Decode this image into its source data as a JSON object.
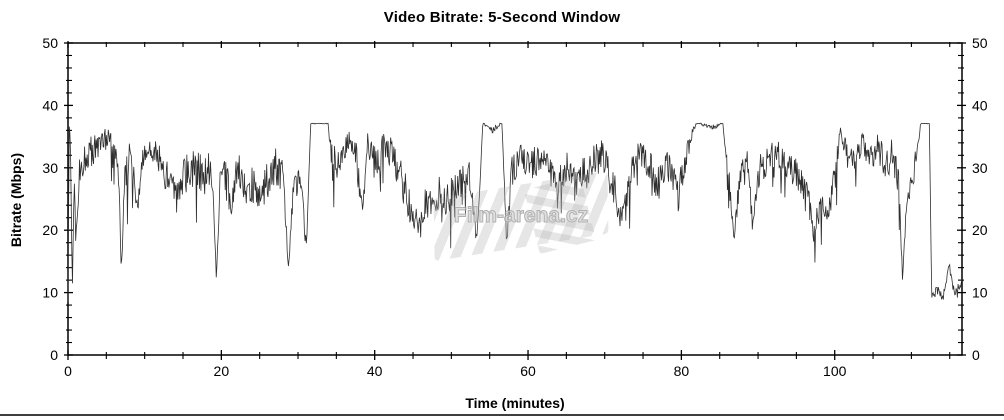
{
  "watermark": {
    "text": "Film-arena.cz"
  },
  "chart_data": {
    "type": "line",
    "title": "Video Bitrate: 5-Second Window",
    "xlabel": "Time (minutes)",
    "ylabel": "Bitrate (Mbps)",
    "xlim": [
      0,
      116.6
    ],
    "ylim": [
      0,
      50
    ],
    "x_ticks_major": [
      0,
      20,
      40,
      60,
      80,
      100
    ],
    "x_minor_step": 5,
    "y_ticks_major": [
      0,
      10,
      20,
      30,
      40,
      50
    ],
    "y_minor_step": 2,
    "grid": false,
    "axes_mirrored": true,
    "legend": "none",
    "line_color": "#2e2e2e",
    "series": [
      {
        "name": "video bitrate (5-second window)",
        "units": "Mbps",
        "cap_mbps": 37.15,
        "sample_interval_s": 5,
        "keypoints_t_min_value_noise": [
          [
            0,
            8.5,
            0
          ],
          [
            0.15,
            36.8,
            0.3
          ],
          [
            0.35,
            33,
            2
          ],
          [
            0.55,
            10.5,
            1
          ],
          [
            0.8,
            28,
            2.5
          ],
          [
            1.1,
            21.5,
            1.5
          ],
          [
            1.5,
            30,
            2.5
          ],
          [
            2.2,
            32.5,
            2.5
          ],
          [
            3.2,
            33.5,
            2.5
          ],
          [
            4.2,
            34.5,
            2
          ],
          [
            5.2,
            35,
            2
          ],
          [
            6.2,
            34,
            2.5
          ],
          [
            6.6,
            30,
            2.5
          ],
          [
            6.95,
            12.5,
            1
          ],
          [
            7.4,
            29,
            2.5
          ],
          [
            8.2,
            33.5,
            2.5
          ],
          [
            9.1,
            23.5,
            1.5
          ],
          [
            9.7,
            32,
            2.5
          ],
          [
            10.6,
            34.5,
            2
          ],
          [
            11.6,
            33,
            2.5
          ],
          [
            12.6,
            30,
            3
          ],
          [
            13.6,
            27.5,
            2.5
          ],
          [
            14.6,
            28.5,
            3
          ],
          [
            15.6,
            30,
            3
          ],
          [
            16.6,
            31,
            3
          ],
          [
            17.6,
            29,
            3.5
          ],
          [
            18.7,
            31,
            2.5
          ],
          [
            19.35,
            13,
            0.8
          ],
          [
            19.9,
            30,
            2
          ],
          [
            20.6,
            33.5,
            2
          ],
          [
            21.3,
            24,
            1.5
          ],
          [
            22.1,
            31,
            2.5
          ],
          [
            23.1,
            27.5,
            3
          ],
          [
            24.1,
            28,
            3
          ],
          [
            25.1,
            26,
            2.5
          ],
          [
            26.1,
            29,
            3
          ],
          [
            27.1,
            31,
            3
          ],
          [
            28.1,
            29,
            3
          ],
          [
            28.75,
            14.5,
            0.8
          ],
          [
            29.4,
            27,
            2.5
          ],
          [
            30.3,
            29,
            2.5
          ],
          [
            31.1,
            17.5,
            1.2
          ],
          [
            31.65,
            37.1,
            0
          ],
          [
            33.9,
            37.1,
            0
          ],
          [
            34.5,
            31,
            3
          ],
          [
            35.6,
            33,
            3
          ],
          [
            36.6,
            35,
            2
          ],
          [
            37.6,
            32,
            3
          ],
          [
            38.35,
            23.5,
            1.5
          ],
          [
            39.1,
            34,
            2.5
          ],
          [
            40.1,
            31,
            3
          ],
          [
            41.1,
            34,
            2.5
          ],
          [
            42.1,
            33,
            2.5
          ],
          [
            43.1,
            30,
            3
          ],
          [
            44.1,
            26.5,
            3
          ],
          [
            45.1,
            22.5,
            2.5
          ],
          [
            45.9,
            20.5,
            2
          ],
          [
            46.6,
            26,
            3
          ],
          [
            47.6,
            23.5,
            2.5
          ],
          [
            48.4,
            27,
            3
          ],
          [
            49.1,
            25,
            2.5
          ],
          [
            50.1,
            27,
            3
          ],
          [
            51.1,
            28,
            3
          ],
          [
            52.3,
            30,
            3
          ],
          [
            53.35,
            18.5,
            1.2
          ],
          [
            54.1,
            37.1,
            0
          ],
          [
            55.3,
            36.2,
            0.6
          ],
          [
            56.6,
            37.1,
            0
          ],
          [
            57.2,
            18.5,
            1.2
          ],
          [
            57.9,
            30,
            2.5
          ],
          [
            59.1,
            33,
            2.5
          ],
          [
            60.6,
            31,
            3
          ],
          [
            62.1,
            33,
            2.5
          ],
          [
            63.6,
            27.5,
            2.5
          ],
          [
            65.1,
            31,
            2.5
          ],
          [
            66.6,
            29,
            3.5
          ],
          [
            68.1,
            31,
            3
          ],
          [
            69.6,
            33,
            2.5
          ],
          [
            71.1,
            28,
            3
          ],
          [
            72.25,
            22,
            2
          ],
          [
            73.6,
            31,
            2.5
          ],
          [
            75.1,
            33,
            2.5
          ],
          [
            76.6,
            28,
            3.5
          ],
          [
            78.1,
            31,
            2.5
          ],
          [
            79.6,
            27,
            3.5
          ],
          [
            80.9,
            34,
            2
          ],
          [
            81.9,
            37.1,
            0
          ],
          [
            84.3,
            36.6,
            0.5
          ],
          [
            85.4,
            37.1,
            0
          ],
          [
            86.1,
            30,
            2.5
          ],
          [
            86.85,
            18.5,
            1
          ],
          [
            87.6,
            29,
            2.5
          ],
          [
            88.6,
            31,
            2.5
          ],
          [
            89.35,
            21,
            1.5
          ],
          [
            90.1,
            30,
            2.5
          ],
          [
            91.2,
            32,
            2.5
          ],
          [
            92.6,
            33,
            2.5
          ],
          [
            94.1,
            31,
            2.5
          ],
          [
            95.6,
            28,
            3
          ],
          [
            96.6,
            25,
            2.5
          ],
          [
            97.25,
            19.5,
            1.5
          ],
          [
            98.1,
            25,
            2.5
          ],
          [
            99.1,
            22,
            2
          ],
          [
            100.1,
            30,
            2.5
          ],
          [
            100.75,
            36.3,
            0.8
          ],
          [
            101.6,
            33,
            2.5
          ],
          [
            102.6,
            31,
            2.5
          ],
          [
            103.6,
            35,
            1.8
          ],
          [
            104.6,
            32,
            2.5
          ],
          [
            105.6,
            34,
            2.2
          ],
          [
            106.6,
            31,
            2.5
          ],
          [
            107.6,
            33,
            2.5
          ],
          [
            108.35,
            28,
            2.5
          ],
          [
            108.85,
            12,
            0.5
          ],
          [
            109.4,
            26,
            2
          ],
          [
            110.1,
            29,
            2.5
          ],
          [
            110.8,
            33,
            1.5
          ],
          [
            111.2,
            37.05,
            0.1
          ],
          [
            112.35,
            37.05,
            0.1
          ],
          [
            112.65,
            9.5,
            0.7
          ],
          [
            113.4,
            10.5,
            1
          ],
          [
            114.3,
            10,
            1
          ],
          [
            114.95,
            14.8,
            0.6
          ],
          [
            115.45,
            10.5,
            1
          ],
          [
            116.1,
            10.5,
            1.2
          ],
          [
            116.6,
            12,
            0.5
          ]
        ]
      }
    ]
  }
}
